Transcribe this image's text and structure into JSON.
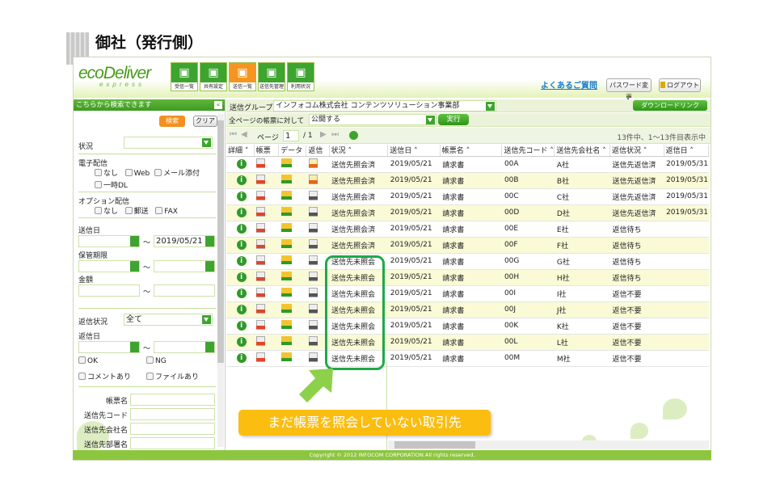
{
  "slide_title": "御社（発行側）",
  "header": {
    "logo": "ecoDeliver",
    "logo_sub": "express",
    "nav": [
      {
        "label": "受信一覧",
        "icon": "envelope-icon",
        "active": false
      },
      {
        "label": "共有設定",
        "icon": "sitemap-icon",
        "active": false
      },
      {
        "label": "送信一覧",
        "icon": "upload-tray-icon",
        "active": true
      },
      {
        "label": "送信先管理",
        "icon": "address-book-icon",
        "active": false
      },
      {
        "label": "利用状況",
        "icon": "id-card-icon",
        "active": false
      }
    ],
    "faq": "よくあるご質問",
    "password_change": "パスワード変更",
    "logout": "ログアウト"
  },
  "search": {
    "title": "こちらから検索できます",
    "search_btn": "検索",
    "clear_btn": "クリア",
    "status_label": "状況",
    "status_value": "",
    "edelivery_label": "電子配信",
    "edelivery_opts": [
      "なし",
      "Web",
      "メール添付",
      "一時DL"
    ],
    "option_label": "オプション配信",
    "option_opts": [
      "なし",
      "郵送",
      "FAX"
    ],
    "send_date_label": "送信日",
    "send_date_from": "",
    "send_date_to": "2019/05/21",
    "retention_label": "保管期限",
    "amount_label": "金額",
    "reply_status_label": "返信状況",
    "reply_status_value": "全て",
    "reply_date_label": "返信日",
    "reply_opts": [
      "OK",
      "NG",
      "コメントあり",
      "ファイルあり"
    ],
    "name_fields": [
      "帳票名",
      "送信先コード",
      "送信先会社名",
      "送信先部署名"
    ],
    "tilde": "～"
  },
  "toolbar": {
    "group_label": "送信グループ",
    "group_value": "インフォコム株式会社 コンテンツソリューション事業部",
    "download_link": "ダウンロードリンク",
    "bulk_label": "全ページの帳票に対して",
    "bulk_value": "公開する",
    "execute": "実行",
    "page_label": "ページ",
    "page_value": "1",
    "page_total": "/ 1",
    "count_text": "13件中、1～13件目表示中"
  },
  "columns": [
    "詳細 ˄",
    "帳票",
    "データ",
    "返信",
    "状況 ˄",
    "送信日 ˄",
    "帳票名 ˄",
    "送信先コード ˄",
    "送信先会社名 ˄",
    "返信状況 ˄",
    "返信日 ˄"
  ],
  "rows": [
    {
      "status": "送信先照会済",
      "date": "2019/05/21",
      "doc": "請求書",
      "code": "00A",
      "company": "A社",
      "reply": "送信先返信済",
      "reply_date": "2019/05/31"
    },
    {
      "status": "送信先照会済",
      "date": "2019/05/21",
      "doc": "請求書",
      "code": "00B",
      "company": "B社",
      "reply": "送信先返信済",
      "reply_date": "2019/05/31"
    },
    {
      "status": "送信先照会済",
      "date": "2019/05/21",
      "doc": "請求書",
      "code": "00C",
      "company": "C社",
      "reply": "送信先返信済",
      "reply_date": "2019/05/31"
    },
    {
      "status": "送信先照会済",
      "date": "2019/05/21",
      "doc": "請求書",
      "code": "00D",
      "company": "D社",
      "reply": "送信先返信済",
      "reply_date": "2019/05/31"
    },
    {
      "status": "送信先照会済",
      "date": "2019/05/21",
      "doc": "請求書",
      "code": "00E",
      "company": "E社",
      "reply": "返信待ち",
      "reply_date": ""
    },
    {
      "status": "送信先照会済",
      "date": "2019/05/21",
      "doc": "請求書",
      "code": "00F",
      "company": "F社",
      "reply": "返信待ち",
      "reply_date": ""
    },
    {
      "status": "送信先未照会",
      "date": "2019/05/21",
      "doc": "請求書",
      "code": "00G",
      "company": "G社",
      "reply": "返信待ち",
      "reply_date": ""
    },
    {
      "status": "送信先未照会",
      "date": "2019/05/21",
      "doc": "請求書",
      "code": "00H",
      "company": "H社",
      "reply": "返信待ち",
      "reply_date": ""
    },
    {
      "status": "送信先未照会",
      "date": "2019/05/21",
      "doc": "請求書",
      "code": "00I",
      "company": "I社",
      "reply": "返信不要",
      "reply_date": ""
    },
    {
      "status": "送信先未照会",
      "date": "2019/05/21",
      "doc": "請求書",
      "code": "00J",
      "company": "J社",
      "reply": "返信不要",
      "reply_date": ""
    },
    {
      "status": "送信先未照会",
      "date": "2019/05/21",
      "doc": "請求書",
      "code": "00K",
      "company": "K社",
      "reply": "返信不要",
      "reply_date": ""
    },
    {
      "status": "送信先未照会",
      "date": "2019/05/21",
      "doc": "請求書",
      "code": "00L",
      "company": "L社",
      "reply": "返信不要",
      "reply_date": ""
    },
    {
      "status": "送信先未照会",
      "date": "2019/05/21",
      "doc": "請求書",
      "code": "00M",
      "company": "M社",
      "reply": "返信不要",
      "reply_date": ""
    }
  ],
  "callout": "まだ帳票を照会していない取引先",
  "footer": "Copyright © 2012 INFOCOM CORPORATION All rights reserved.",
  "colors": {
    "green": "#3ea430",
    "orange": "#f39020",
    "callout": "#fbbd10",
    "highlight": "#1fa94a",
    "footer": "#8cc63f"
  }
}
